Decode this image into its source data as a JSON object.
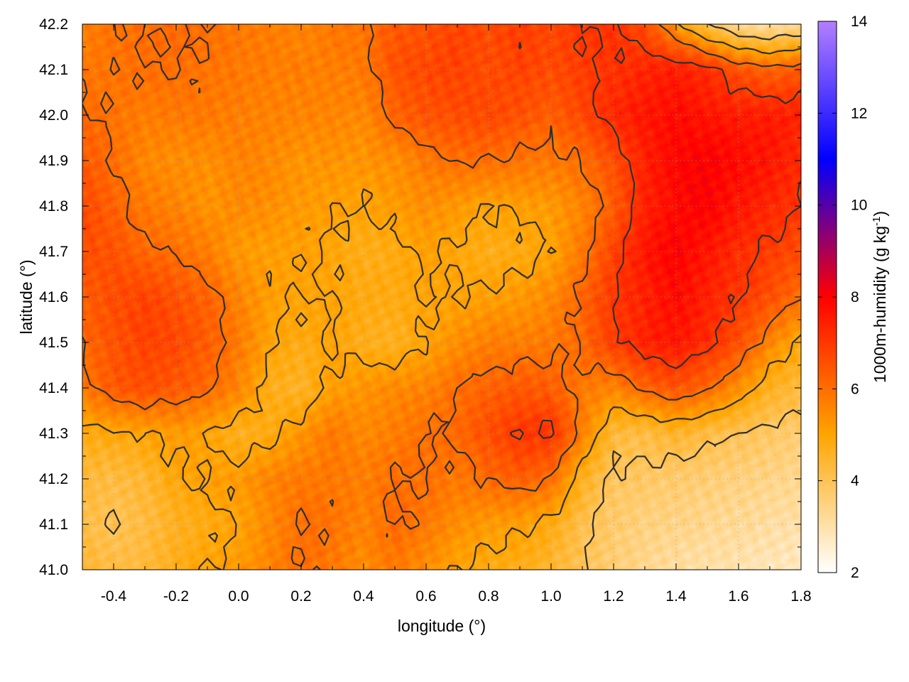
{
  "chart_data": {
    "type": "heatmap",
    "title": "",
    "xlabel": "longitude (°)",
    "ylabel": "latitude (°)",
    "xlim": [
      -0.5,
      1.8
    ],
    "ylim": [
      41.0,
      42.2
    ],
    "x_ticks": [
      -0.4,
      -0.2,
      0.0,
      0.2,
      0.4,
      0.6,
      0.8,
      1.0,
      1.2,
      1.4,
      1.6,
      1.8
    ],
    "x_tick_labels": [
      "-0.4",
      "-0.2",
      "0.0",
      "0.2",
      "0.4",
      "0.6",
      "0.8",
      "1.0",
      "1.2",
      "1.4",
      "1.6",
      "1.8"
    ],
    "y_ticks": [
      41.0,
      41.1,
      41.2,
      41.3,
      41.4,
      41.5,
      41.6,
      41.7,
      41.8,
      41.9,
      42.0,
      42.1,
      42.2
    ],
    "y_tick_labels": [
      "41.0",
      "41.1",
      "41.2",
      "41.3",
      "41.4",
      "41.5",
      "41.6",
      "41.7",
      "41.8",
      "41.9",
      "42.0",
      "42.1",
      "42.2"
    ],
    "grid": true,
    "colorbar": {
      "label": "1000m-humidity (g kg",
      "label_superscript": "-1",
      "label_suffix": ")",
      "range": [
        2,
        14
      ],
      "ticks": [
        2,
        4,
        6,
        8,
        10,
        12,
        14
      ],
      "tick_labels": [
        "2",
        "4",
        "6",
        "8",
        "10",
        "12",
        "14"
      ],
      "colors": [
        "#ffffff",
        "#ffa500",
        "#ff0000",
        "#0000ff",
        "#b27fff"
      ]
    },
    "contour_levels": [
      4,
      5,
      6,
      7
    ],
    "field": {
      "x": [
        -0.5,
        -0.4,
        -0.3,
        -0.2,
        -0.1,
        0.0,
        0.1,
        0.2,
        0.3,
        0.4,
        0.5,
        0.6,
        0.7,
        0.8,
        0.9,
        1.0,
        1.1,
        1.2,
        1.3,
        1.4,
        1.5,
        1.6,
        1.7,
        1.8
      ],
      "y": [
        41.0,
        41.1,
        41.2,
        41.3,
        41.4,
        41.5,
        41.6,
        41.7,
        41.8,
        41.9,
        42.0,
        42.1,
        42.2
      ],
      "z": [
        [
          4.4,
          4.2,
          4.3,
          4.7,
          5.0,
          5.2,
          5.6,
          6.0,
          5.8,
          5.4,
          5.8,
          5.4,
          5.0,
          4.8,
          4.7,
          4.4,
          4.0,
          3.6,
          3.3,
          3.1,
          3.0,
          2.9,
          2.8,
          2.7
        ],
        [
          4.2,
          4.0,
          4.2,
          4.6,
          4.8,
          5.0,
          5.5,
          6.0,
          5.9,
          5.6,
          6.1,
          5.8,
          5.4,
          5.2,
          5.1,
          4.8,
          4.1,
          3.7,
          3.5,
          3.4,
          3.3,
          3.2,
          3.1,
          3.0
        ],
        [
          4.3,
          4.2,
          4.4,
          4.9,
          5.1,
          5.2,
          5.6,
          5.8,
          5.8,
          5.7,
          6.0,
          6.0,
          5.8,
          6.1,
          6.3,
          6.0,
          4.6,
          3.9,
          3.8,
          3.7,
          3.6,
          3.5,
          3.4,
          3.3
        ],
        [
          4.8,
          4.9,
          5.0,
          5.2,
          5.0,
          4.6,
          4.8,
          5.3,
          5.8,
          5.5,
          5.7,
          6.0,
          6.1,
          6.6,
          7.0,
          7.1,
          5.7,
          4.3,
          4.2,
          4.5,
          4.2,
          4.0,
          3.8,
          3.7
        ],
        [
          5.8,
          6.4,
          6.6,
          6.4,
          6.1,
          5.6,
          4.7,
          4.5,
          5.1,
          5.3,
          5.5,
          5.6,
          6.0,
          6.2,
          6.4,
          6.3,
          5.8,
          5.6,
          6.2,
          6.5,
          6.1,
          5.4,
          4.6,
          4.3
        ],
        [
          6.1,
          6.5,
          6.8,
          6.7,
          6.3,
          5.8,
          5.0,
          4.8,
          5.0,
          4.7,
          4.6,
          5.0,
          5.4,
          5.7,
          5.7,
          5.8,
          6.1,
          6.9,
          7.4,
          7.6,
          7.2,
          6.6,
          5.6,
          4.8
        ],
        [
          6.3,
          6.6,
          6.8,
          6.5,
          6.2,
          5.6,
          5.1,
          5.0,
          5.0,
          4.8,
          4.8,
          5.0,
          5.0,
          5.1,
          5.2,
          5.5,
          6.2,
          7.0,
          7.4,
          7.8,
          7.4,
          7.0,
          6.6,
          6.0
        ],
        [
          6.6,
          6.5,
          6.1,
          6.0,
          5.7,
          5.2,
          5.1,
          5.1,
          4.9,
          4.7,
          4.8,
          5.1,
          4.9,
          4.7,
          4.8,
          5.0,
          5.8,
          6.8,
          7.6,
          8.0,
          7.6,
          7.2,
          6.9,
          6.6
        ],
        [
          6.7,
          6.2,
          5.8,
          5.6,
          5.3,
          5.5,
          5.4,
          5.2,
          5.1,
          5.0,
          5.2,
          5.4,
          5.2,
          5.0,
          5.1,
          5.2,
          5.6,
          6.3,
          7.4,
          7.8,
          8.0,
          7.6,
          7.3,
          7.0
        ],
        [
          6.4,
          6.0,
          5.5,
          5.4,
          5.4,
          5.6,
          5.5,
          5.3,
          5.3,
          5.3,
          5.4,
          5.8,
          6.0,
          6.0,
          5.9,
          5.8,
          6.0,
          6.6,
          7.4,
          7.9,
          8.0,
          7.8,
          7.6,
          7.2
        ],
        [
          6.1,
          5.9,
          5.7,
          5.8,
          5.8,
          5.7,
          5.6,
          5.6,
          5.6,
          5.5,
          6.2,
          6.5,
          6.6,
          6.7,
          6.5,
          6.3,
          6.7,
          7.3,
          7.6,
          7.8,
          7.6,
          7.5,
          7.5,
          7.4
        ],
        [
          5.8,
          5.9,
          6.0,
          6.0,
          5.9,
          5.8,
          5.7,
          5.7,
          5.7,
          5.8,
          6.5,
          6.7,
          6.8,
          6.6,
          6.8,
          6.6,
          6.9,
          7.1,
          7.3,
          7.5,
          7.2,
          6.5,
          6.2,
          6.4
        ],
        [
          5.7,
          5.9,
          6.0,
          6.1,
          6.0,
          5.8,
          5.7,
          5.6,
          5.8,
          5.9,
          6.4,
          6.5,
          6.8,
          6.6,
          6.9,
          6.7,
          7.0,
          7.1,
          6.6,
          5.2,
          4.0,
          3.2,
          3.0,
          3.3
        ]
      ]
    }
  }
}
